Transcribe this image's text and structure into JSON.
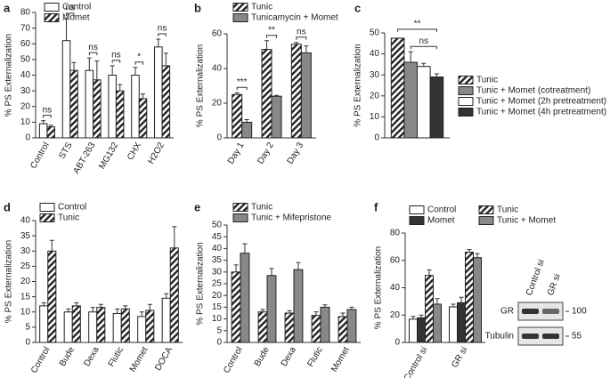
{
  "chart_data": [
    {
      "type": "bar",
      "panel": "a",
      "ylabel": "% PS Externalization",
      "categories": [
        "Control",
        "STS",
        "ABT-263",
        "MG132",
        "CHX",
        "H2O2"
      ],
      "series": [
        {
          "name": "Control",
          "color": "#ffffff",
          "hatch": false,
          "values": [
            9,
            62,
            43,
            40,
            40,
            58
          ],
          "errors": [
            2,
            14,
            8,
            6,
            5,
            5
          ]
        },
        {
          "name": "Momet",
          "color": "#ffffff",
          "hatch": true,
          "values": [
            7,
            43,
            37,
            30,
            25,
            46
          ],
          "errors": [
            1,
            5,
            12,
            4,
            3,
            8
          ]
        }
      ],
      "significance": [
        "ns",
        "ns",
        "ns",
        "ns",
        "*",
        "ns"
      ],
      "ylim": [
        0,
        80
      ],
      "yticks": [
        0,
        10,
        20,
        30,
        40,
        50,
        60,
        70,
        80
      ]
    },
    {
      "type": "bar",
      "panel": "b",
      "ylabel": "% PS Externalization",
      "categories": [
        "Day 1",
        "Day 2",
        "Day 3"
      ],
      "series": [
        {
          "name": "Tunic",
          "color": "#ffffff",
          "hatch": true,
          "values": [
            25,
            51,
            54
          ],
          "errors": [
            1,
            5,
            1
          ]
        },
        {
          "name": "Tunicamycin + Momet",
          "color": "#888888",
          "hatch": false,
          "values": [
            9,
            24,
            49
          ],
          "errors": [
            1.5,
            0.5,
            4
          ]
        }
      ],
      "significance": [
        "***",
        "**",
        "ns"
      ],
      "ylim": [
        0,
        60
      ],
      "yticks": [
        0,
        20,
        40,
        60
      ]
    },
    {
      "type": "bar",
      "panel": "c",
      "ylabel": "% PS Externalization",
      "categories": [
        null
      ],
      "series": [
        {
          "name": "Tunic",
          "color": "#ffffff",
          "hatch": true,
          "values": [
            47.5
          ],
          "errors": [
            0
          ]
        },
        {
          "name": "Tunic + Momet (cotreatment)",
          "color": "#888888",
          "hatch": false,
          "values": [
            36
          ],
          "errors": [
            5
          ]
        },
        {
          "name": "Tunic + Momet (2h pretreatment)",
          "color": "#ffffff",
          "hatch": false,
          "values": [
            34
          ],
          "errors": [
            1.5
          ]
        },
        {
          "name": "Tunic + Momet (4h pretreatment)",
          "color": "#333333",
          "hatch": false,
          "values": [
            29
          ],
          "errors": [
            1.5
          ]
        }
      ],
      "significance": [
        "**",
        "ns"
      ],
      "ylim": [
        0,
        50
      ],
      "yticks": [
        0,
        10,
        20,
        30,
        40,
        50
      ]
    },
    {
      "type": "bar",
      "panel": "d",
      "ylabel": "% PS Externalization",
      "categories": [
        "Control",
        "Bude",
        "Dexa",
        "Flutic",
        "Momet",
        "DOCA"
      ],
      "series": [
        {
          "name": "Control",
          "color": "#ffffff",
          "hatch": false,
          "values": [
            12,
            10,
            10,
            9.5,
            8.5,
            14.5
          ],
          "errors": [
            1,
            1,
            1.5,
            1.5,
            1.5,
            1.5
          ]
        },
        {
          "name": "Tunic",
          "color": "#ffffff",
          "hatch": true,
          "values": [
            30,
            12,
            11.5,
            11,
            10.5,
            31
          ],
          "errors": [
            3.5,
            1,
            1,
            1,
            2,
            7
          ]
        }
      ],
      "ylim": [
        0,
        40
      ],
      "yticks": [
        0,
        5,
        10,
        15,
        20,
        25,
        30,
        35,
        40
      ]
    },
    {
      "type": "bar",
      "panel": "e",
      "ylabel": "% PS Externalization",
      "categories": [
        "Control",
        "Bude",
        "Dexa",
        "Flutic",
        "Momet"
      ],
      "series": [
        {
          "name": "Tunic",
          "color": "#ffffff",
          "hatch": true,
          "values": [
            30,
            13,
            12.5,
            11.5,
            11
          ],
          "errors": [
            3,
            1,
            1,
            1.5,
            1.5
          ]
        },
        {
          "name": "Tunic + Mifepristone",
          "color": "#888888",
          "hatch": false,
          "values": [
            38,
            28.5,
            31,
            15,
            14
          ],
          "errors": [
            4,
            3,
            3,
            1,
            1
          ]
        }
      ],
      "ylim": [
        0,
        50
      ],
      "yticks": [
        0,
        5,
        10,
        15,
        20,
        25,
        30,
        35,
        40,
        45,
        50
      ]
    },
    {
      "type": "bar",
      "panel": "f",
      "ylabel": "% PS Externalization",
      "categories": [
        "Control si",
        "GR si"
      ],
      "series": [
        {
          "name": "Control",
          "color": "#ffffff",
          "hatch": false,
          "values": [
            17,
            26
          ],
          "errors": [
            2,
            2
          ]
        },
        {
          "name": "Momet",
          "color": "#333333",
          "hatch": false,
          "values": [
            18,
            29
          ],
          "errors": [
            2,
            4
          ]
        },
        {
          "name": "Tunic",
          "color": "#ffffff",
          "hatch": true,
          "values": [
            49,
            66
          ],
          "errors": [
            4,
            2
          ]
        },
        {
          "name": "Tunic + Momet",
          "color": "#888888",
          "hatch": false,
          "values": [
            28,
            62
          ],
          "errors": [
            4,
            3
          ]
        }
      ],
      "ylim": [
        0,
        80
      ],
      "yticks": [
        0,
        20,
        40,
        60,
        80
      ],
      "blot": {
        "lanes": [
          "Control si",
          "GR si"
        ],
        "bands": [
          {
            "label": "GR",
            "marker": 100
          },
          {
            "label": "Tubulin",
            "marker": 55
          }
        ]
      }
    }
  ]
}
